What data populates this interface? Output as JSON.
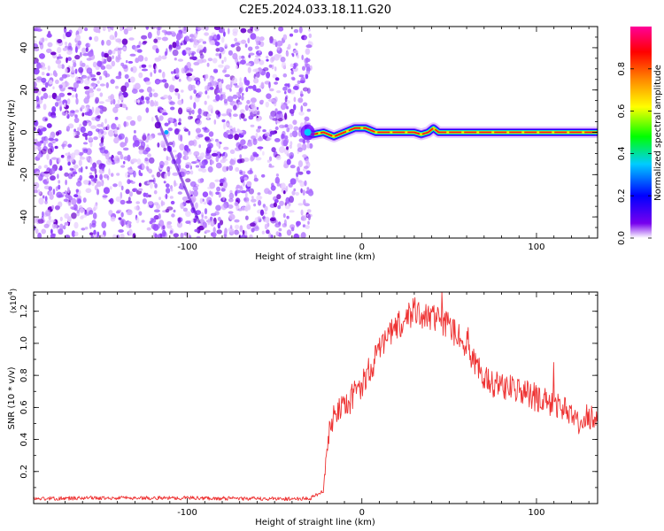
{
  "title": "C2E5.2024.033.18.11.G20",
  "chart_data": [
    {
      "type": "heatmap",
      "xlabel": "Height of straight line (km)",
      "ylabel": "Frequency (Hz)",
      "xlim": [
        -188,
        135
      ],
      "ylim": [
        -50,
        50
      ],
      "xticks": [
        -100,
        0,
        100
      ],
      "xtick_labels": [
        "-100",
        "0",
        "100"
      ],
      "yticks": [
        -40,
        -20,
        0,
        20,
        40
      ],
      "ytick_labels": [
        "-40",
        "-20",
        "0",
        "20",
        "40"
      ],
      "noise_region_x": [
        -188,
        -32
      ],
      "doppler_line": [
        {
          "x": -32,
          "y": 0
        },
        {
          "x": -28,
          "y": -1
        },
        {
          "x": -22,
          "y": 0
        },
        {
          "x": -16,
          "y": -2
        },
        {
          "x": -10,
          "y": 0
        },
        {
          "x": -4,
          "y": 2
        },
        {
          "x": 2,
          "y": 2
        },
        {
          "x": 8,
          "y": 0
        },
        {
          "x": 30,
          "y": 0
        },
        {
          "x": 34,
          "y": -1
        },
        {
          "x": 38,
          "y": 0
        },
        {
          "x": 41,
          "y": 2
        },
        {
          "x": 44,
          "y": 0
        },
        {
          "x": 135,
          "y": 0
        }
      ],
      "faint_streak": [
        {
          "x": -118,
          "y": 8
        },
        {
          "x": -93,
          "y": -43
        }
      ],
      "colorbar": {
        "label": "Normalized spectral amplitude",
        "range": [
          0,
          1
        ],
        "ticks": [
          0.0,
          0.2,
          0.4,
          0.6,
          0.8
        ],
        "tick_labels": [
          "0.0",
          "0.2",
          "0.4",
          "0.6",
          "0.8"
        ],
        "colors": [
          "#ffffff",
          "#7700ee",
          "#0000ff",
          "#00ccff",
          "#00ff00",
          "#ffff00",
          "#ff8800",
          "#ff0000",
          "#ff0099"
        ]
      }
    },
    {
      "type": "line",
      "xlabel": "Height of straight line (km)",
      "ylabel": "SNR (10 * v/v)",
      "scale_label": "(x10",
      "scale_exp": "4",
      "scale_close": ")",
      "xlim": [
        -188,
        135
      ],
      "ylim": [
        0,
        1.32
      ],
      "xticks": [
        -100,
        0,
        100
      ],
      "xtick_labels": [
        "-100",
        "0",
        "100"
      ],
      "yticks": [
        0.2,
        0.4,
        0.6,
        0.8,
        1.0,
        1.2
      ],
      "ytick_labels": [
        "0.2",
        "0.4",
        "0.6",
        "0.8",
        "1.0",
        "1.2"
      ],
      "color": "#ee3333",
      "series": [
        {
          "x": [
            -188,
            -150,
            -100,
            -60,
            -30,
            -22,
            -20,
            -18,
            -16,
            -12,
            -8,
            -4,
            0,
            5,
            10,
            15,
            20,
            25,
            30,
            35,
            40,
            45,
            50,
            55,
            60,
            65,
            70,
            75,
            80,
            85,
            90,
            95,
            100,
            105,
            110,
            115,
            120,
            125,
            130,
            135
          ],
          "y": [
            0.03,
            0.035,
            0.035,
            0.03,
            0.03,
            0.08,
            0.35,
            0.5,
            0.55,
            0.58,
            0.6,
            0.7,
            0.75,
            0.85,
            0.95,
            1.05,
            1.1,
            1.15,
            1.2,
            1.18,
            1.16,
            1.14,
            1.1,
            1.05,
            1.0,
            0.85,
            0.8,
            0.75,
            0.75,
            0.72,
            0.7,
            0.68,
            0.66,
            0.64,
            0.62,
            0.6,
            0.55,
            0.5,
            0.55,
            0.52
          ]
        }
      ]
    }
  ]
}
